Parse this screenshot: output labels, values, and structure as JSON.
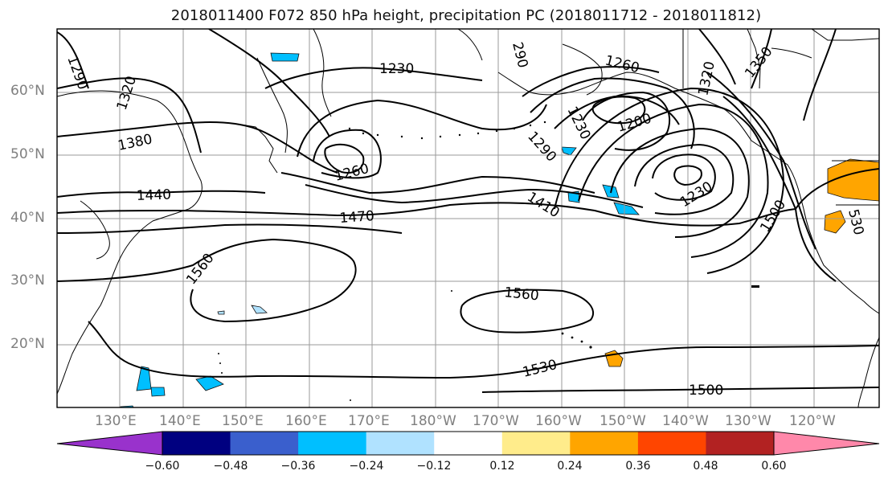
{
  "title": "2018011400 F072 850 hPa height, precipitation PC (2018011712 - 2018011812)",
  "lat_labels": [
    "60°N",
    "50°N",
    "40°N",
    "30°N",
    "20°N"
  ],
  "lon_labels": [
    "130°E",
    "140°E",
    "150°E",
    "160°E",
    "170°E",
    "180°W",
    "170°W",
    "160°W",
    "150°W",
    "140°W",
    "130°W",
    "120°W"
  ],
  "contour_labels": [
    {
      "text": "1290"
    },
    {
      "text": "1320"
    },
    {
      "text": "1380"
    },
    {
      "text": "1440"
    },
    {
      "text": "1230"
    },
    {
      "text": "1260"
    },
    {
      "text": "1260"
    },
    {
      "text": "1200"
    },
    {
      "text": "1230"
    },
    {
      "text": "1290"
    },
    {
      "text": "1320"
    },
    {
      "text": "1350"
    },
    {
      "text": "1410"
    },
    {
      "text": "1470"
    },
    {
      "text": "1230"
    },
    {
      "text": "1500"
    },
    {
      "text": "1560"
    },
    {
      "text": "1560"
    },
    {
      "text": "1530"
    },
    {
      "text": "1500"
    },
    {
      "text": "530"
    },
    {
      "text": "290"
    }
  ],
  "colorbar": {
    "colors": [
      "#9932cc",
      "#000080",
      "#3a5fcd",
      "#00bfff",
      "#b0e2ff",
      "#ffffff",
      "#ffec8b",
      "#ffa500",
      "#ff4500",
      "#b22222",
      "#ff88aa"
    ],
    "ticks": [
      "−0.60",
      "−0.48",
      "−0.36",
      "−0.24",
      "−0.12",
      "0.12",
      "0.24",
      "0.36",
      "0.48",
      "0.60"
    ]
  }
}
